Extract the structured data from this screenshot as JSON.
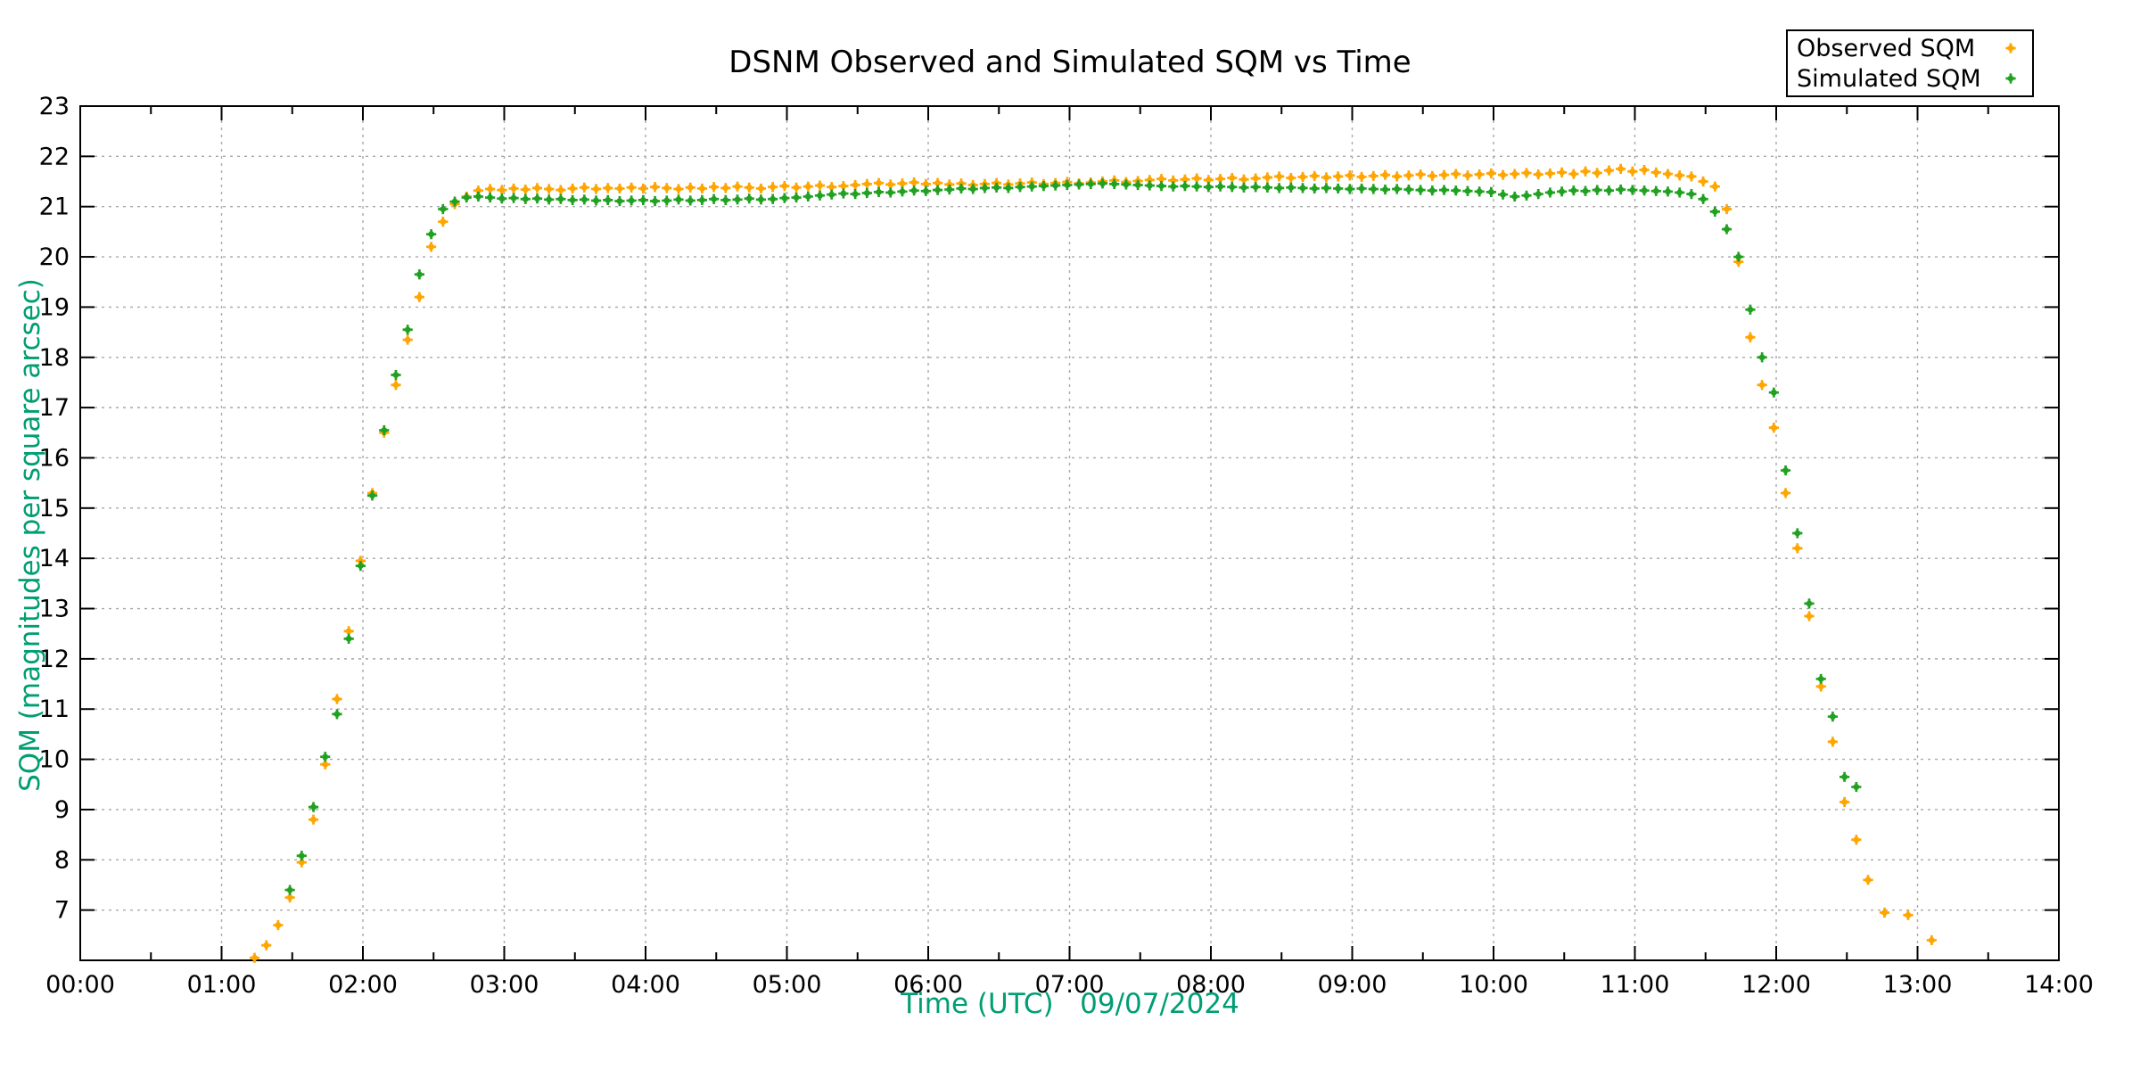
{
  "page": {
    "title": "DSNM Observed and Simulated SQM vs Time"
  },
  "axes": {
    "x_label": "Time (UTC)   09/07/2024",
    "y_label": "SQM (magnitudes per square arcsec)",
    "x_tick_labels": [
      "00:00",
      "01:00",
      "02:00",
      "03:00",
      "04:00",
      "05:00",
      "06:00",
      "07:00",
      "08:00",
      "09:00",
      "10:00",
      "11:00",
      "12:00",
      "13:00",
      "14:00"
    ],
    "y_tick_labels": [
      "7",
      "8",
      "9",
      "10",
      "11",
      "12",
      "13",
      "14",
      "15",
      "16",
      "17",
      "18",
      "19",
      "20",
      "21",
      "22",
      "23"
    ],
    "label_color": "#009E73",
    "tick_label_color": "#000000"
  },
  "legend": {
    "items": [
      {
        "label": "Observed SQM",
        "color": "#FFA500"
      },
      {
        "label": "Simulated SQM",
        "color": "#21A121"
      }
    ],
    "position": "top-right"
  },
  "colors": {
    "background": "#FFFFFF",
    "axis": "#000000",
    "grid": "#A8A8A8",
    "observed": "#FFA500",
    "simulated": "#21A121",
    "axis_label": "#009E73"
  },
  "chart_data": {
    "type": "scatter",
    "title": "DSNM Observed and Simulated SQM vs Time",
    "xlabel": "Time (UTC)   09/07/2024",
    "ylabel": "SQM (magnitudes per square arcsec)",
    "x_unit": "minutes after 00:00 UTC",
    "xlim_minutes": [
      0,
      840
    ],
    "ylim": [
      6,
      23
    ],
    "x_major_tick_minutes": 60,
    "x_minor_tick_minutes": 30,
    "grid": true,
    "legend_position": "top-right",
    "series": [
      {
        "name": "Observed SQM",
        "color": "#FFA500",
        "points": [
          [
            74,
            6.05
          ],
          [
            79,
            6.3
          ],
          [
            84,
            6.7
          ],
          [
            89,
            7.25
          ],
          [
            94,
            7.95
          ],
          [
            99,
            8.8
          ],
          [
            104,
            9.9
          ],
          [
            109,
            11.2
          ],
          [
            114,
            12.55
          ],
          [
            119,
            13.95
          ],
          [
            124,
            15.3
          ],
          [
            129,
            16.5
          ],
          [
            134,
            17.45
          ],
          [
            139,
            18.35
          ],
          [
            144,
            19.2
          ],
          [
            149,
            20.2
          ],
          [
            154,
            20.7
          ],
          [
            159,
            21.05
          ],
          [
            164,
            21.2
          ],
          [
            169,
            21.32
          ],
          [
            174,
            21.35
          ],
          [
            179,
            21.33
          ],
          [
            184,
            21.36
          ],
          [
            189,
            21.34
          ],
          [
            194,
            21.37
          ],
          [
            199,
            21.35
          ],
          [
            204,
            21.33
          ],
          [
            209,
            21.36
          ],
          [
            214,
            21.38
          ],
          [
            219,
            21.35
          ],
          [
            224,
            21.37
          ],
          [
            229,
            21.36
          ],
          [
            234,
            21.38
          ],
          [
            239,
            21.36
          ],
          [
            244,
            21.39
          ],
          [
            249,
            21.37
          ],
          [
            254,
            21.35
          ],
          [
            259,
            21.38
          ],
          [
            264,
            21.36
          ],
          [
            269,
            21.39
          ],
          [
            274,
            21.37
          ],
          [
            279,
            21.4
          ],
          [
            284,
            21.38
          ],
          [
            289,
            21.36
          ],
          [
            294,
            21.39
          ],
          [
            299,
            21.41
          ],
          [
            304,
            21.38
          ],
          [
            309,
            21.4
          ],
          [
            314,
            21.42
          ],
          [
            319,
            21.39
          ],
          [
            324,
            21.41
          ],
          [
            329,
            21.43
          ],
          [
            334,
            21.45
          ],
          [
            339,
            21.47
          ],
          [
            344,
            21.44
          ],
          [
            349,
            21.46
          ],
          [
            354,
            21.48
          ],
          [
            359,
            21.45
          ],
          [
            364,
            21.47
          ],
          [
            369,
            21.44
          ],
          [
            374,
            21.46
          ],
          [
            379,
            21.43
          ],
          [
            384,
            21.45
          ],
          [
            389,
            21.47
          ],
          [
            394,
            21.44
          ],
          [
            399,
            21.46
          ],
          [
            404,
            21.48
          ],
          [
            409,
            21.45
          ],
          [
            414,
            21.47
          ],
          [
            419,
            21.49
          ],
          [
            424,
            21.46
          ],
          [
            429,
            21.48
          ],
          [
            434,
            21.5
          ],
          [
            439,
            21.52
          ],
          [
            444,
            21.49
          ],
          [
            449,
            21.51
          ],
          [
            454,
            21.53
          ],
          [
            459,
            21.55
          ],
          [
            464,
            21.52
          ],
          [
            469,
            21.54
          ],
          [
            474,
            21.56
          ],
          [
            479,
            21.53
          ],
          [
            484,
            21.55
          ],
          [
            489,
            21.57
          ],
          [
            494,
            21.54
          ],
          [
            499,
            21.56
          ],
          [
            504,
            21.58
          ],
          [
            509,
            21.6
          ],
          [
            514,
            21.57
          ],
          [
            519,
            21.59
          ],
          [
            524,
            21.61
          ],
          [
            529,
            21.58
          ],
          [
            534,
            21.6
          ],
          [
            539,
            21.62
          ],
          [
            544,
            21.59
          ],
          [
            549,
            21.61
          ],
          [
            554,
            21.63
          ],
          [
            559,
            21.6
          ],
          [
            564,
            21.62
          ],
          [
            569,
            21.64
          ],
          [
            574,
            21.61
          ],
          [
            579,
            21.63
          ],
          [
            584,
            21.65
          ],
          [
            589,
            21.62
          ],
          [
            594,
            21.64
          ],
          [
            599,
            21.66
          ],
          [
            604,
            21.63
          ],
          [
            609,
            21.65
          ],
          [
            614,
            21.67
          ],
          [
            619,
            21.64
          ],
          [
            624,
            21.66
          ],
          [
            629,
            21.68
          ],
          [
            634,
            21.65
          ],
          [
            639,
            21.7
          ],
          [
            644,
            21.67
          ],
          [
            649,
            21.72
          ],
          [
            654,
            21.75
          ],
          [
            659,
            21.7
          ],
          [
            664,
            21.73
          ],
          [
            669,
            21.68
          ],
          [
            674,
            21.65
          ],
          [
            679,
            21.62
          ],
          [
            684,
            21.6
          ],
          [
            689,
            21.5
          ],
          [
            694,
            21.4
          ],
          [
            699,
            20.95
          ],
          [
            704,
            19.9
          ],
          [
            709,
            18.4
          ],
          [
            714,
            17.45
          ],
          [
            719,
            16.6
          ],
          [
            724,
            15.3
          ],
          [
            729,
            14.2
          ],
          [
            734,
            12.85
          ],
          [
            739,
            11.45
          ],
          [
            744,
            10.35
          ],
          [
            749,
            9.15
          ],
          [
            754,
            8.4
          ],
          [
            759,
            7.6
          ],
          [
            766,
            6.95
          ],
          [
            776,
            6.9
          ],
          [
            786,
            6.4
          ]
        ]
      },
      {
        "name": "Simulated SQM",
        "color": "#21A121",
        "points": [
          [
            89,
            7.4
          ],
          [
            94,
            8.08
          ],
          [
            99,
            9.05
          ],
          [
            104,
            10.05
          ],
          [
            109,
            10.9
          ],
          [
            114,
            12.4
          ],
          [
            119,
            13.85
          ],
          [
            124,
            15.25
          ],
          [
            129,
            16.55
          ],
          [
            134,
            17.65
          ],
          [
            139,
            18.55
          ],
          [
            144,
            19.65
          ],
          [
            149,
            20.45
          ],
          [
            154,
            20.95
          ],
          [
            159,
            21.1
          ],
          [
            164,
            21.18
          ],
          [
            169,
            21.2
          ],
          [
            174,
            21.18
          ],
          [
            179,
            21.16
          ],
          [
            184,
            21.17
          ],
          [
            189,
            21.15
          ],
          [
            194,
            21.16
          ],
          [
            199,
            21.14
          ],
          [
            204,
            21.15
          ],
          [
            209,
            21.13
          ],
          [
            214,
            21.14
          ],
          [
            219,
            21.12
          ],
          [
            224,
            21.13
          ],
          [
            229,
            21.11
          ],
          [
            234,
            21.12
          ],
          [
            239,
            21.13
          ],
          [
            244,
            21.11
          ],
          [
            249,
            21.12
          ],
          [
            254,
            21.14
          ],
          [
            259,
            21.12
          ],
          [
            264,
            21.13
          ],
          [
            269,
            21.15
          ],
          [
            274,
            21.13
          ],
          [
            279,
            21.14
          ],
          [
            284,
            21.16
          ],
          [
            289,
            21.14
          ],
          [
            294,
            21.15
          ],
          [
            299,
            21.17
          ],
          [
            304,
            21.18
          ],
          [
            309,
            21.2
          ],
          [
            314,
            21.22
          ],
          [
            319,
            21.24
          ],
          [
            324,
            21.26
          ],
          [
            329,
            21.25
          ],
          [
            334,
            21.27
          ],
          [
            339,
            21.29
          ],
          [
            344,
            21.28
          ],
          [
            349,
            21.3
          ],
          [
            354,
            21.32
          ],
          [
            359,
            21.31
          ],
          [
            364,
            21.33
          ],
          [
            369,
            21.34
          ],
          [
            374,
            21.36
          ],
          [
            379,
            21.35
          ],
          [
            384,
            21.37
          ],
          [
            389,
            21.38
          ],
          [
            394,
            21.37
          ],
          [
            399,
            21.39
          ],
          [
            404,
            21.4
          ],
          [
            409,
            21.41
          ],
          [
            414,
            21.42
          ],
          [
            419,
            21.43
          ],
          [
            424,
            21.44
          ],
          [
            429,
            21.45
          ],
          [
            434,
            21.46
          ],
          [
            439,
            21.45
          ],
          [
            444,
            21.44
          ],
          [
            449,
            21.43
          ],
          [
            454,
            21.42
          ],
          [
            459,
            21.41
          ],
          [
            464,
            21.4
          ],
          [
            469,
            21.41
          ],
          [
            474,
            21.4
          ],
          [
            479,
            21.39
          ],
          [
            484,
            21.4
          ],
          [
            489,
            21.39
          ],
          [
            494,
            21.38
          ],
          [
            499,
            21.39
          ],
          [
            504,
            21.38
          ],
          [
            509,
            21.37
          ],
          [
            514,
            21.38
          ],
          [
            519,
            21.37
          ],
          [
            524,
            21.36
          ],
          [
            529,
            21.37
          ],
          [
            534,
            21.36
          ],
          [
            539,
            21.35
          ],
          [
            544,
            21.36
          ],
          [
            549,
            21.35
          ],
          [
            554,
            21.34
          ],
          [
            559,
            21.35
          ],
          [
            564,
            21.34
          ],
          [
            569,
            21.33
          ],
          [
            574,
            21.32
          ],
          [
            579,
            21.33
          ],
          [
            584,
            21.32
          ],
          [
            589,
            21.31
          ],
          [
            594,
            21.3
          ],
          [
            599,
            21.29
          ],
          [
            604,
            21.24
          ],
          [
            609,
            21.2
          ],
          [
            614,
            21.22
          ],
          [
            619,
            21.25
          ],
          [
            624,
            21.28
          ],
          [
            629,
            21.3
          ],
          [
            634,
            21.32
          ],
          [
            639,
            21.31
          ],
          [
            644,
            21.33
          ],
          [
            649,
            21.32
          ],
          [
            654,
            21.34
          ],
          [
            659,
            21.33
          ],
          [
            664,
            21.32
          ],
          [
            669,
            21.31
          ],
          [
            674,
            21.3
          ],
          [
            679,
            21.28
          ],
          [
            684,
            21.25
          ],
          [
            689,
            21.15
          ],
          [
            694,
            20.9
          ],
          [
            699,
            20.55
          ],
          [
            704,
            20.0
          ],
          [
            709,
            18.95
          ],
          [
            714,
            18.0
          ],
          [
            719,
            17.3
          ],
          [
            724,
            15.75
          ],
          [
            729,
            14.5
          ],
          [
            734,
            13.1
          ],
          [
            739,
            11.6
          ],
          [
            744,
            10.85
          ],
          [
            749,
            9.65
          ],
          [
            754,
            9.45
          ]
        ]
      }
    ]
  }
}
